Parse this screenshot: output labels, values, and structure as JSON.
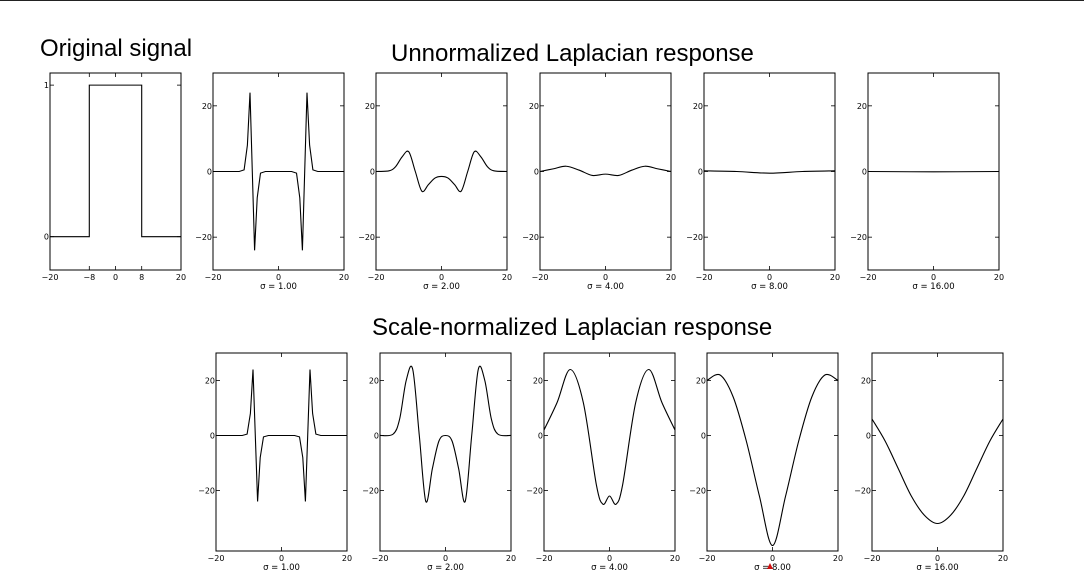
{
  "headings": {
    "original": "Original signal",
    "unnormalized": "Unnormalized Laplacian response",
    "normalized": "Scale-normalized Laplacian response"
  },
  "chart_data": [
    {
      "id": "original",
      "type": "line",
      "x": [
        -20,
        -8,
        -8,
        8,
        8,
        20
      ],
      "y": [
        0,
        0,
        1,
        1,
        0,
        0
      ],
      "xlim": [
        -20,
        20
      ],
      "ylim": [
        -0.22,
        1.08
      ],
      "xticks": [
        -20,
        -8,
        0,
        8,
        20
      ],
      "yticks": [
        0,
        1
      ],
      "xlabel": "",
      "ylabel": ""
    },
    {
      "id": "unnormalized",
      "type": "line",
      "xlim": [
        -20,
        20
      ],
      "ylim": [
        -30,
        30
      ],
      "xticks": [
        -20,
        0,
        20
      ],
      "yticks": [
        -20,
        0,
        20
      ],
      "panels": [
        {
          "label": "σ = 1.00",
          "x": [
            -20,
            -12,
            -10.5,
            -9.5,
            -8.7,
            -8,
            -7.3,
            -6.5,
            -5.5,
            -4,
            0,
            4,
            5.5,
            6.5,
            7.3,
            8,
            8.7,
            9.5,
            10.5,
            12,
            20
          ],
          "y": [
            0,
            0,
            0.5,
            8,
            24,
            0,
            -24,
            -8,
            -0.5,
            0,
            0,
            0,
            -0.5,
            -8,
            -24,
            0,
            24,
            8,
            0.5,
            0,
            0
          ]
        },
        {
          "label": "σ = 2.00",
          "x": [
            -20,
            -16,
            -14,
            -12,
            -10,
            -8,
            -6,
            -4,
            -2,
            0,
            2,
            4,
            6,
            8,
            10,
            12,
            14,
            16,
            20
          ],
          "y": [
            0,
            0.2,
            1.5,
            4.5,
            6,
            0,
            -6,
            -4,
            -2,
            -1.5,
            -2,
            -4,
            -6,
            0,
            6,
            4.5,
            1.5,
            0.2,
            0
          ],
          "smooth": true
        },
        {
          "label": "σ = 4.00",
          "x": [
            -20,
            -16,
            -12,
            -8,
            -4,
            0,
            4,
            8,
            12,
            16,
            20
          ],
          "y": [
            0,
            0.8,
            1.6,
            0.4,
            -1.2,
            -0.8,
            -1.2,
            0.4,
            1.6,
            0.8,
            0
          ],
          "smooth": true
        },
        {
          "label": "σ = 8.00",
          "x": [
            -20,
            -10,
            0,
            10,
            20
          ],
          "y": [
            0.2,
            0,
            -0.5,
            0,
            0.2
          ],
          "smooth": true
        },
        {
          "label": "σ = 16.00",
          "x": [
            -20,
            0,
            20
          ],
          "y": [
            0,
            -0.1,
            0
          ],
          "smooth": true
        }
      ]
    },
    {
      "id": "normalized",
      "type": "line",
      "xlim": [
        -20,
        20
      ],
      "ylim": [
        -42,
        30
      ],
      "xticks": [
        -20,
        0,
        20
      ],
      "yticks": [
        -20,
        0,
        20
      ],
      "panels": [
        {
          "label": "σ = 1.00",
          "x": [
            -20,
            -12,
            -10.5,
            -9.5,
            -8.7,
            -8,
            -7.3,
            -6.5,
            -5.5,
            -4,
            0,
            4,
            5.5,
            6.5,
            7.3,
            8,
            8.7,
            9.5,
            10.5,
            12,
            20
          ],
          "y": [
            0,
            0,
            0.5,
            8,
            24,
            0,
            -24,
            -8,
            -0.5,
            0,
            0,
            0,
            -0.5,
            -8,
            -24,
            0,
            24,
            8,
            0.5,
            0,
            0
          ]
        },
        {
          "label": "σ = 2.00",
          "x": [
            -20,
            -16,
            -14,
            -12,
            -10,
            -8,
            -6,
            -4,
            -2,
            0,
            2,
            4,
            6,
            8,
            10,
            12,
            14,
            16,
            20
          ],
          "y": [
            0,
            0.5,
            6,
            20,
            24,
            0,
            -24,
            -12,
            -2,
            0,
            -2,
            -12,
            -24,
            0,
            24,
            20,
            6,
            0.5,
            0
          ],
          "smooth": true
        },
        {
          "label": "σ = 4.00",
          "x": [
            -20,
            -16,
            -12,
            -8,
            -4,
            -2,
            0,
            2,
            4,
            8,
            12,
            16,
            20
          ],
          "y": [
            2,
            12,
            24,
            12,
            -18,
            -25,
            -22,
            -25,
            -18,
            12,
            24,
            12,
            2
          ],
          "smooth": true
        },
        {
          "label": "σ = 8.00",
          "x": [
            -20,
            -16,
            -12,
            -8,
            -4,
            0,
            4,
            8,
            12,
            16,
            20
          ],
          "y": [
            20,
            22,
            14,
            -2,
            -22,
            -40,
            -22,
            -2,
            14,
            22,
            20
          ],
          "smooth": true
        },
        {
          "label": "σ = 16.00",
          "x": [
            -20,
            -16,
            -12,
            -8,
            -4,
            0,
            4,
            8,
            12,
            16,
            20
          ],
          "y": [
            6,
            -2,
            -12,
            -22,
            -29,
            -32,
            -29,
            -22,
            -12,
            -2,
            6
          ],
          "smooth": true
        }
      ]
    }
  ]
}
